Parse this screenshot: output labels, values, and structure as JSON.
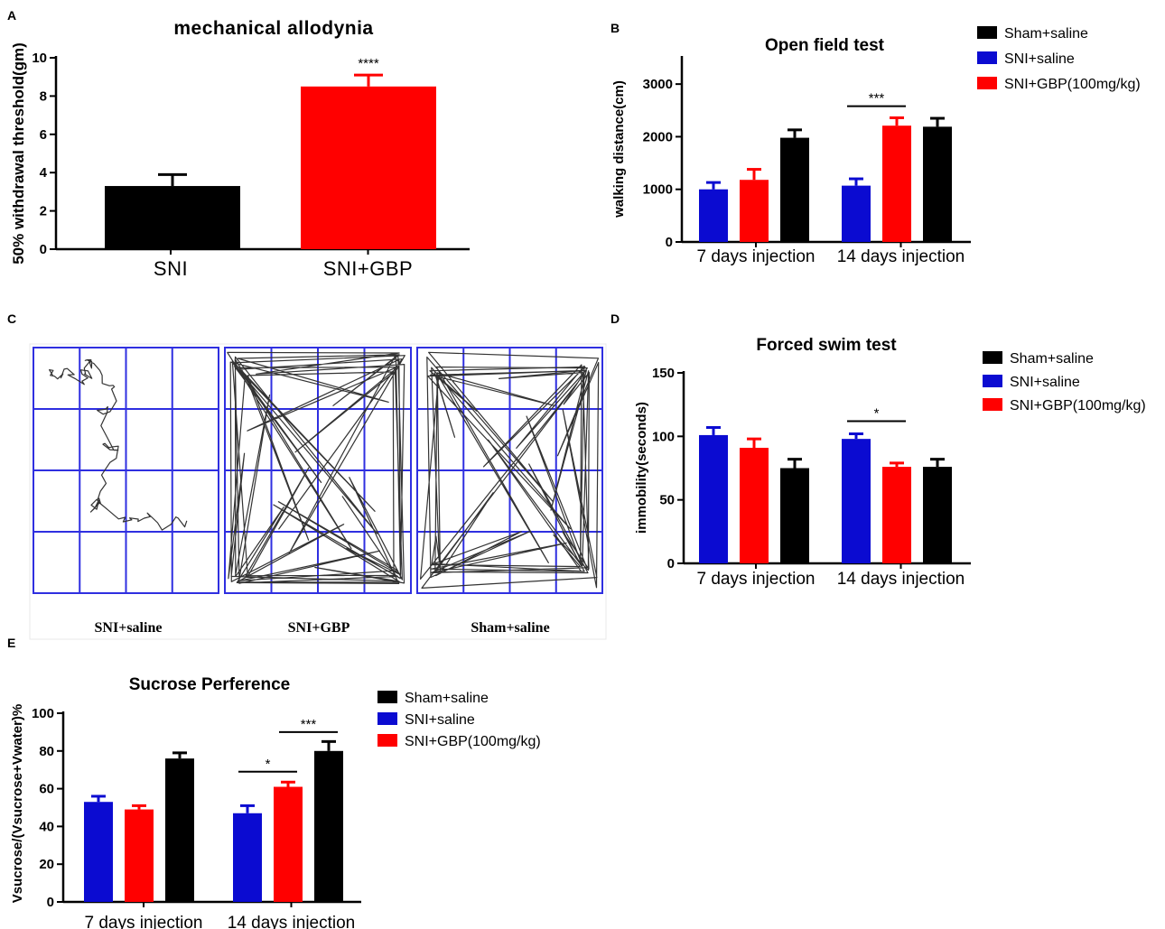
{
  "colors": {
    "sham": "#000000",
    "sni": "#0b0bd1",
    "gbp": "#ff0000",
    "grid": "#2f2fe0"
  },
  "legend": [
    {
      "key": "sham",
      "label": "Sham+saline"
    },
    {
      "key": "sni",
      "label": "SNI+saline"
    },
    {
      "key": "gbp",
      "label": "SNI+GBP(100mg/kg)"
    }
  ],
  "panel_c": {
    "letter": "C",
    "captions": [
      "SNI+saline",
      "SNI+GBP",
      "Sham+saline"
    ]
  },
  "chart_data": [
    {
      "id": "A",
      "letter": "A",
      "type": "bar",
      "title": "mechanical allodynia",
      "ylabel": "50% withdrawal threshold(gm)",
      "ylim": [
        0,
        10
      ],
      "yticks": [
        0,
        2,
        4,
        6,
        8,
        10
      ],
      "categories": [
        "SNI",
        "SNI+GBP"
      ],
      "series": [
        {
          "values": [
            3.3,
            8.5
          ],
          "errors": [
            0.6,
            0.6
          ],
          "colors": [
            "sham",
            "gbp"
          ]
        }
      ],
      "annotations": [
        {
          "text": "****",
          "category": 1
        }
      ]
    },
    {
      "id": "B",
      "letter": "B",
      "type": "bar",
      "title": "Open field test",
      "ylabel": "walking distance(cm)",
      "ylim": [
        0,
        3500
      ],
      "yticks": [
        0,
        1000,
        2000,
        3000
      ],
      "categories": [
        "7 days injection",
        "14 days injection"
      ],
      "series": [
        {
          "name": "SNI+saline",
          "key": "sni",
          "values": [
            1000,
            1070
          ],
          "errors": [
            130,
            130
          ]
        },
        {
          "name": "SNI+GBP(100mg/kg)",
          "key": "gbp",
          "values": [
            1180,
            2210
          ],
          "errors": [
            200,
            150
          ]
        },
        {
          "name": "Sham+saline",
          "key": "sham",
          "values": [
            1980,
            2190
          ],
          "errors": [
            150,
            160
          ]
        }
      ],
      "legend_order": [
        "sham",
        "sni",
        "gbp"
      ],
      "significance": [
        {
          "text": "***",
          "category": 1,
          "from": 0,
          "to": 1,
          "y": 2580
        }
      ]
    },
    {
      "id": "D",
      "letter": "D",
      "type": "bar",
      "title": "Forced swim test",
      "ylabel": "immobility(seconds)",
      "ylim": [
        0,
        150
      ],
      "yticks": [
        0,
        50,
        100,
        150
      ],
      "categories": [
        "7 days injection",
        "14 days injection"
      ],
      "series": [
        {
          "name": "SNI+saline",
          "key": "sni",
          "values": [
            101,
            98
          ],
          "errors": [
            6,
            4
          ]
        },
        {
          "name": "SNI+GBP(100mg/kg)",
          "key": "gbp",
          "values": [
            91,
            76
          ],
          "errors": [
            7,
            3
          ]
        },
        {
          "name": "Sham+saline",
          "key": "sham",
          "values": [
            75,
            76
          ],
          "errors": [
            7,
            6
          ]
        }
      ],
      "legend_order": [
        "sham",
        "sni",
        "gbp"
      ],
      "significance": [
        {
          "text": "*",
          "category": 1,
          "from": 0,
          "to": 1,
          "y": 112
        }
      ]
    },
    {
      "id": "E",
      "letter": "E",
      "type": "bar",
      "title": "Sucrose Perference",
      "ylabel": "Vsucrose/(Vsucrose+Vwater)%",
      "ylim": [
        0,
        100
      ],
      "yticks": [
        0,
        20,
        40,
        60,
        80,
        100
      ],
      "categories": [
        "7 days injection",
        "14 days injection"
      ],
      "series": [
        {
          "name": "SNI+saline",
          "key": "sni",
          "values": [
            53,
            47
          ],
          "errors": [
            3,
            4
          ]
        },
        {
          "name": "SNI+GBP(100mg/kg)",
          "key": "gbp",
          "values": [
            49,
            61
          ],
          "errors": [
            2,
            2.5
          ]
        },
        {
          "name": "Sham+saline",
          "key": "sham",
          "values": [
            76,
            80
          ],
          "errors": [
            3,
            5
          ]
        }
      ],
      "legend_order": [
        "sham",
        "sni",
        "gbp"
      ],
      "significance": [
        {
          "text": "*",
          "category": 1,
          "from": 0,
          "to": 1,
          "y": 69
        },
        {
          "text": "***",
          "category": 1,
          "from": 1,
          "to": 2,
          "y": 90
        }
      ]
    }
  ]
}
